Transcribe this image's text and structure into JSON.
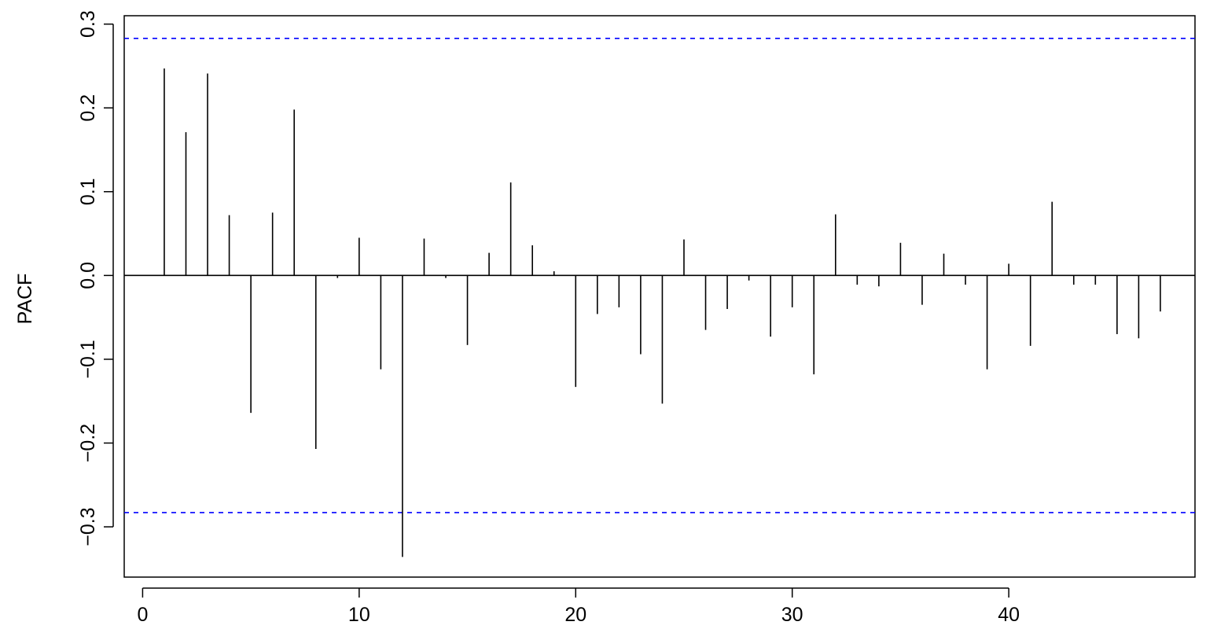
{
  "chart_data": {
    "type": "bar",
    "title": "",
    "xlabel": "",
    "ylabel": "PACF",
    "xlim": [
      -0.85,
      48.6
    ],
    "ylim": [
      -0.36,
      0.31
    ],
    "xticks": [
      0,
      10,
      20,
      30,
      40
    ],
    "xtick_labels": [
      "0",
      "10",
      "20",
      "30",
      "40"
    ],
    "yticks": [
      -0.3,
      -0.2,
      -0.1,
      0.0,
      0.1,
      0.2,
      0.3
    ],
    "ytick_labels": [
      "−0.3",
      "−0.2",
      "−0.1",
      "0.0",
      "0.1",
      "0.2",
      "0.3"
    ],
    "confidence_bound": 0.283,
    "confidence_color": "#0000ff",
    "bar_color": "#000000",
    "zero_line_color": "#000000",
    "grid": false,
    "x": [
      1,
      2,
      3,
      4,
      5,
      6,
      7,
      8,
      9,
      10,
      11,
      12,
      13,
      14,
      15,
      16,
      17,
      18,
      19,
      20,
      21,
      22,
      23,
      24,
      25,
      26,
      27,
      28,
      29,
      30,
      31,
      32,
      33,
      34,
      35,
      36,
      37,
      38,
      39,
      40,
      41,
      42,
      43,
      44,
      45,
      46,
      47
    ],
    "values": [
      0.247,
      0.171,
      0.241,
      0.072,
      -0.164,
      0.075,
      0.198,
      -0.207,
      -0.003,
      0.045,
      -0.112,
      -0.336,
      0.044,
      -0.003,
      -0.083,
      0.027,
      0.111,
      0.036,
      0.005,
      -0.133,
      -0.046,
      -0.038,
      -0.094,
      -0.153,
      0.043,
      -0.065,
      -0.04,
      -0.006,
      -0.073,
      -0.038,
      -0.118,
      0.073,
      -0.011,
      -0.013,
      0.039,
      -0.035,
      0.026,
      -0.011,
      -0.112,
      0.014,
      -0.084,
      0.088,
      -0.011,
      -0.011,
      -0.07,
      -0.075,
      -0.043
    ]
  }
}
